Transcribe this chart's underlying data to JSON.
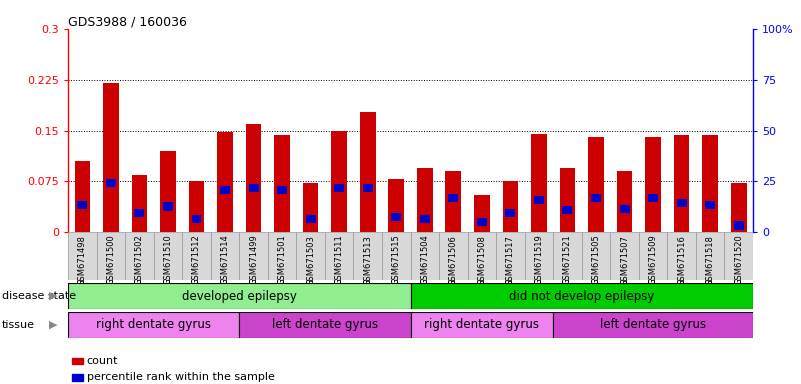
{
  "title": "GDS3988 / 160036",
  "samples": [
    "GSM671498",
    "GSM671500",
    "GSM671502",
    "GSM671510",
    "GSM671512",
    "GSM671514",
    "GSM671499",
    "GSM671501",
    "GSM671503",
    "GSM671511",
    "GSM671513",
    "GSM671515",
    "GSM671504",
    "GSM671506",
    "GSM671508",
    "GSM671517",
    "GSM671519",
    "GSM671521",
    "GSM671505",
    "GSM671507",
    "GSM671509",
    "GSM671516",
    "GSM671518",
    "GSM671520"
  ],
  "counts": [
    0.105,
    0.22,
    0.085,
    0.12,
    0.075,
    0.148,
    0.16,
    0.143,
    0.073,
    0.15,
    0.178,
    0.078,
    0.095,
    0.09,
    0.055,
    0.075,
    0.145,
    0.095,
    0.14,
    0.09,
    0.14,
    0.143,
    0.143,
    0.073
  ],
  "percentile_left": [
    0.04,
    0.073,
    0.028,
    0.038,
    0.02,
    0.063,
    0.065,
    0.063,
    0.02,
    0.065,
    0.065,
    0.023,
    0.02,
    0.05,
    0.015,
    0.028,
    0.048,
    0.033,
    0.05,
    0.035,
    0.05,
    0.043,
    0.04,
    0.01
  ],
  "bar_color": "#cc0000",
  "percentile_color": "#0000cc",
  "ylim_left": [
    0,
    0.3
  ],
  "ylim_right": [
    0,
    100
  ],
  "yticks_left": [
    0,
    0.075,
    0.15,
    0.225,
    0.3
  ],
  "ytick_labels_left": [
    "0",
    "0.075",
    "0.15",
    "0.225",
    "0.3"
  ],
  "yticks_right": [
    0,
    25,
    50,
    75,
    100
  ],
  "ytick_labels_right": [
    "0",
    "25",
    "50",
    "75",
    "100%"
  ],
  "gridlines": [
    0.075,
    0.15,
    0.225
  ],
  "disease_state_groups": [
    {
      "label": "developed epilepsy",
      "start": 0,
      "end": 12,
      "color": "#90ee90"
    },
    {
      "label": "did not develop epilepsy",
      "start": 12,
      "end": 24,
      "color": "#00cc00"
    }
  ],
  "tissue_groups": [
    {
      "label": "right dentate gyrus",
      "start": 0,
      "end": 6,
      "color": "#ee82ee"
    },
    {
      "label": "left dentate gyrus",
      "start": 6,
      "end": 12,
      "color": "#cc44cc"
    },
    {
      "label": "right dentate gyrus",
      "start": 12,
      "end": 17,
      "color": "#ee82ee"
    },
    {
      "label": "left dentate gyrus",
      "start": 17,
      "end": 24,
      "color": "#cc44cc"
    }
  ],
  "bar_width": 0.55,
  "blue_bar_width": 0.35,
  "blue_bar_height": 0.012,
  "background_color": "#ffffff",
  "legend_items": [
    {
      "label": "count",
      "color": "#cc0000"
    },
    {
      "label": "percentile rank within the sample",
      "color": "#0000cc"
    }
  ]
}
